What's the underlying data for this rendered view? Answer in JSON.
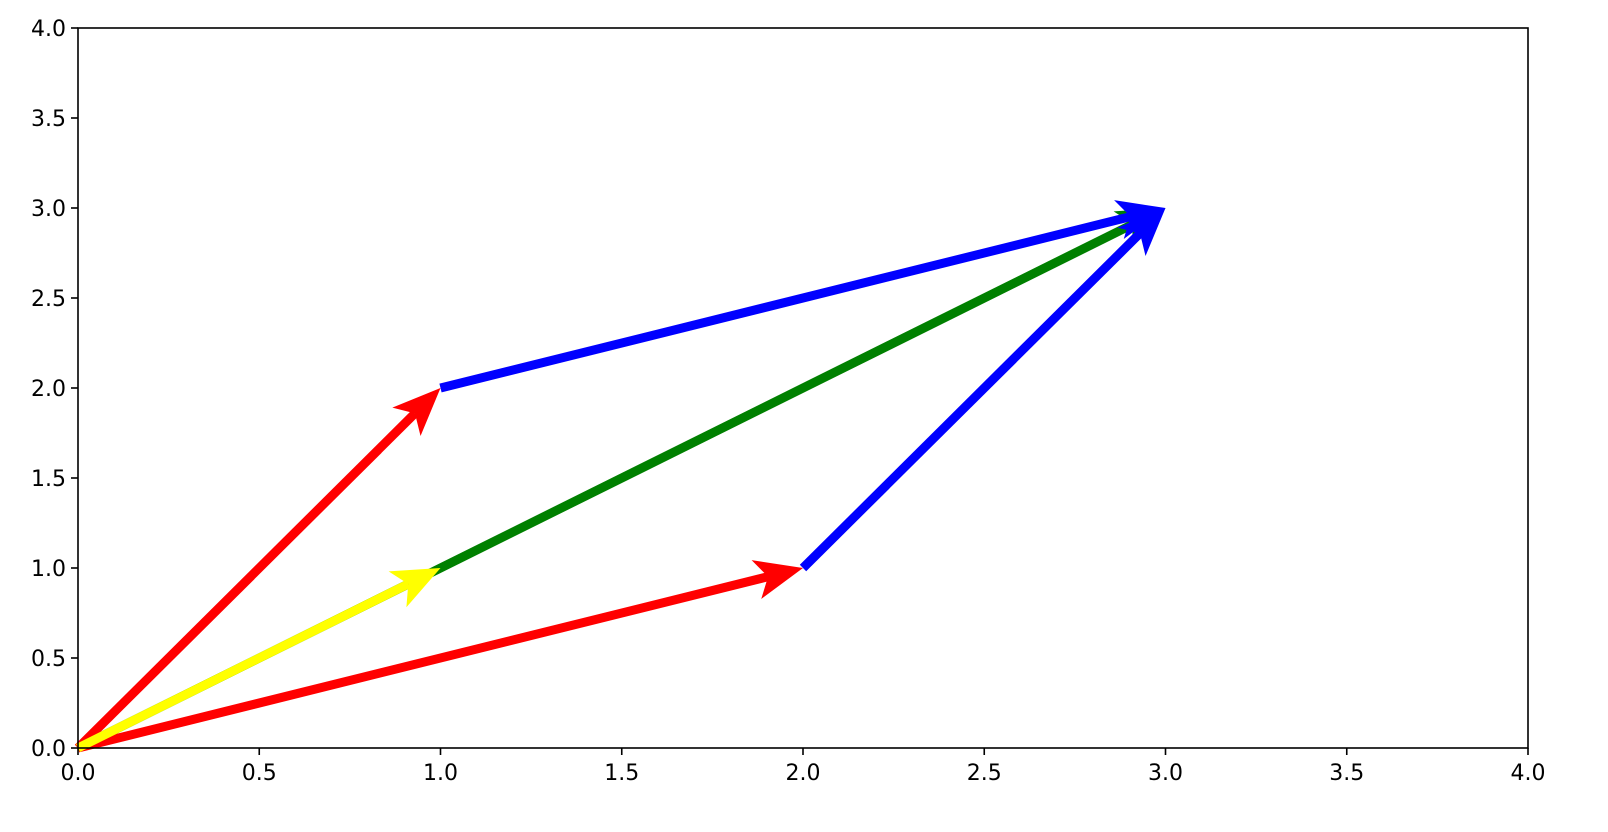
{
  "chart_data": {
    "type": "quiver",
    "arrows": [
      {
        "x": 0,
        "y": 0,
        "dx": 3,
        "dy": 3,
        "color": "#008000"
      },
      {
        "x": 0,
        "y": 0,
        "dx": 1,
        "dy": 2,
        "color": "#ff0000"
      },
      {
        "x": 0,
        "y": 0,
        "dx": 2,
        "dy": 1,
        "color": "#ff0000"
      },
      {
        "x": 1,
        "y": 2,
        "dx": 2,
        "dy": 1,
        "color": "#0000ff"
      },
      {
        "x": 2,
        "y": 1,
        "dx": 1,
        "dy": 2,
        "color": "#0000ff"
      },
      {
        "x": 0,
        "y": 0,
        "dx": 1,
        "dy": 1,
        "color": "#ffff00"
      }
    ],
    "xlim": [
      0,
      4
    ],
    "ylim": [
      0,
      4
    ],
    "xticks": [
      {
        "value": 0,
        "label": "0.0"
      },
      0.5,
      {
        "value": 1,
        "label": "1.0"
      },
      1.5,
      {
        "value": 2,
        "label": "2.0"
      },
      2.5,
      {
        "value": 3,
        "label": "3.0"
      },
      3.5,
      {
        "value": 4,
        "label": "4.0"
      }
    ],
    "yticks": [
      {
        "value": 0,
        "label": "0.0"
      },
      0.5,
      {
        "value": 1,
        "label": "1.0"
      },
      1.5,
      {
        "value": 2,
        "label": "2.0"
      },
      2.5,
      {
        "value": 3,
        "label": "3.0"
      },
      3.5,
      {
        "value": 4,
        "label": "4.0"
      }
    ],
    "grid": false
  }
}
